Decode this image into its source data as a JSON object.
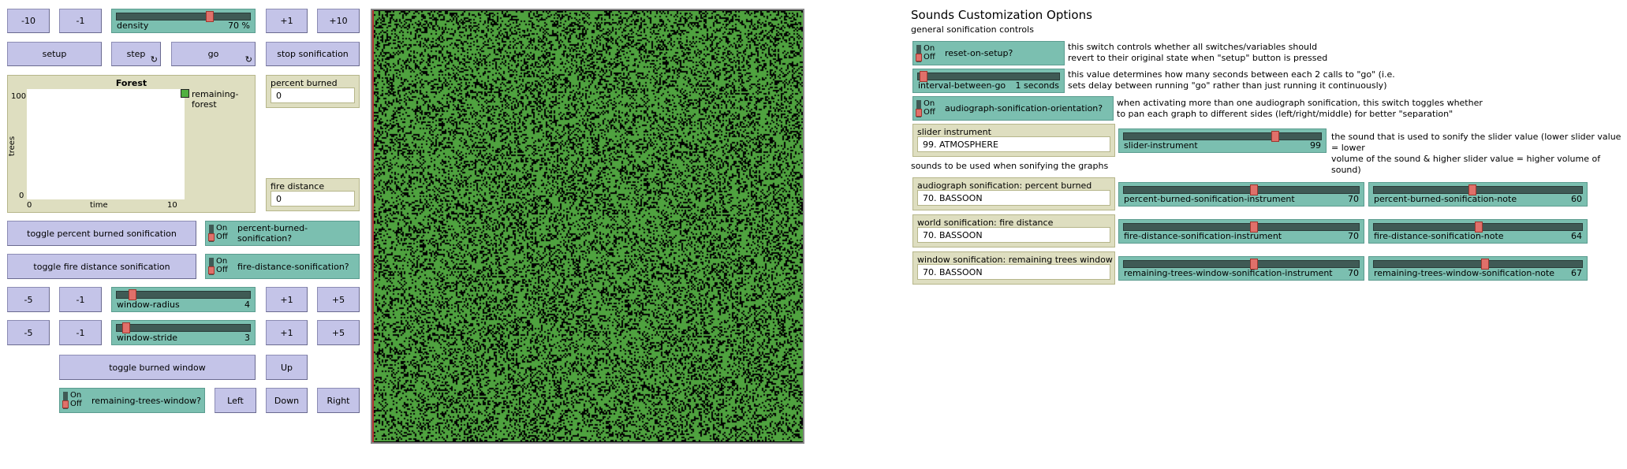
{
  "density_row": {
    "m10": "-10",
    "m1": "-1",
    "p1": "+1",
    "p10": "+10",
    "density_slider": {
      "label": "density",
      "value": "70 %",
      "fraction": 0.7
    }
  },
  "controls": {
    "setup": "setup",
    "step": "step",
    "go": "go",
    "stop": "stop sonification"
  },
  "plot": {
    "title": "Forest",
    "ylabel": "trees",
    "xlabel": "time",
    "ymax": "100",
    "ymin": "0",
    "xmin": "0",
    "xmax": "10",
    "legend": "remaining-forest",
    "legend_color": "#50b040"
  },
  "percent_burned": {
    "label": "percent burned",
    "value": "0"
  },
  "fire_distance": {
    "label": "fire distance",
    "value": "0"
  },
  "toggles": {
    "percent_btn": "toggle percent burned sonification",
    "percent_switch": "percent-burned-sonification?",
    "fire_btn": "toggle fire distance sonification",
    "fire_switch": "fire-distance-sonification?",
    "on": "On",
    "off": "Off"
  },
  "window_radius": {
    "m5": "-5",
    "m1": "-1",
    "p1": "+1",
    "p5": "+5",
    "label": "window-radius",
    "value": "4",
    "fraction": 0.1
  },
  "window_stride": {
    "m5": "-5",
    "m1": "-1",
    "p1": "+1",
    "p5": "+5",
    "label": "window-stride",
    "value": "3",
    "fraction": 0.05
  },
  "window": {
    "toggle": "toggle burned window",
    "up": "Up",
    "left": "Left",
    "down": "Down",
    "right": "Right",
    "switch": "remaining-trees-window?"
  },
  "world": {
    "tree_color": "#4fa23f",
    "burnt_color": "#000000",
    "tree_density": 0.7
  },
  "sounds": {
    "title": "Sounds Customization Options",
    "general": "general sonification controls",
    "reset_switch": "reset-on-setup?",
    "reset_note1": "this switch controls whether all switches/variables should",
    "reset_note2": "revert to their original state when \"setup\" button is pressed",
    "interval_label": "interval-between-go",
    "interval_value": "1 seconds",
    "interval_fraction": 0.02,
    "interval_note1": "this value determines how many seconds between each 2 calls to \"go\" (i.e.",
    "interval_note2": "sets delay between running \"go\" rather than just running it continuously)",
    "orient_switch": "audiograph-sonification-orientation?",
    "orient_note1": "when activating more than one audiograph sonification, this switch toggles whether",
    "orient_note2": "to pan each graph to different sides (left/right/middle) for better \"separation\"",
    "slider_instr_label": "slider instrument",
    "slider_instr_value": "99. ATMOSPHERE",
    "slider_instrument": {
      "label": "slider-instrument",
      "value": "99",
      "fraction": 0.77
    },
    "slider_note1": "the sound that is used to sonify the slider value (lower slider value = lower",
    "slider_note2": "volume of the sound & higher slider value = higher volume of sound)",
    "graphs_title": "sounds to be used when sonifying the graphs",
    "rows": [
      {
        "mon_label": "audiograph sonification: percent burned",
        "mon_value": "70. BASSOON",
        "instr_label": "percent-burned-sonification-instrument",
        "instr_value": "70",
        "instr_fraction": 0.55,
        "note_label": "percent-burned-sonification-note",
        "note_value": "60",
        "note_fraction": 0.47
      },
      {
        "mon_label": "world sonification: fire distance",
        "mon_value": "70. BASSOON",
        "instr_label": "fire-distance-sonification-instrument",
        "instr_value": "70",
        "instr_fraction": 0.55,
        "note_label": "fire-distance-sonification-note",
        "note_value": "64",
        "note_fraction": 0.5
      },
      {
        "mon_label": "window sonification: remaining trees window",
        "mon_value": "70. BASSOON",
        "instr_label": "remaining-trees-window-sonification-instrument",
        "instr_value": "70",
        "instr_fraction": 0.55,
        "note_label": "remaining-trees-window-sonification-note",
        "note_value": "67",
        "note_fraction": 0.53
      }
    ]
  }
}
